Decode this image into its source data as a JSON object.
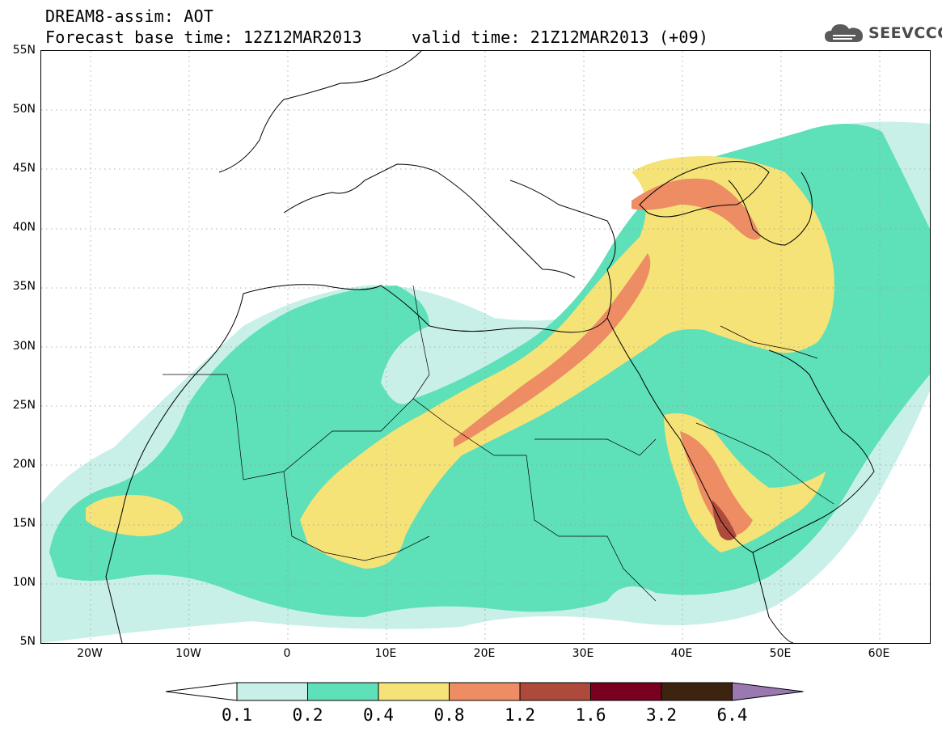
{
  "title": {
    "line1": "DREAM8-assim: AOT",
    "line2": "Forecast base time: 12Z12MAR2013     valid time: 21Z12MAR2013 (+09)"
  },
  "logo": {
    "text": "SEEVCCC",
    "icon": "cloud-icon"
  },
  "map": {
    "projection": "lat-lon",
    "lon_range": [
      -25,
      65
    ],
    "lat_range": [
      5,
      55
    ],
    "grid": "dotted",
    "lat_labels": [
      "55N",
      "50N",
      "45N",
      "40N",
      "35N",
      "30N",
      "25N",
      "20N",
      "15N",
      "10N",
      "5N"
    ],
    "lon_labels": [
      "20W",
      "10W",
      "0",
      "10E",
      "20E",
      "30E",
      "40E",
      "50E",
      "60E"
    ]
  },
  "legend": {
    "levels": [
      "0.1",
      "0.2",
      "0.4",
      "0.8",
      "1.2",
      "1.6",
      "3.2",
      "6.4"
    ],
    "colors": [
      "#ffffff",
      "#c8f0e8",
      "#5ee0b8",
      "#f5e378",
      "#ee8c64",
      "#ad4a3c",
      "#7a0020",
      "#3c2410",
      "#9a78b0"
    ],
    "extend": "both"
  }
}
